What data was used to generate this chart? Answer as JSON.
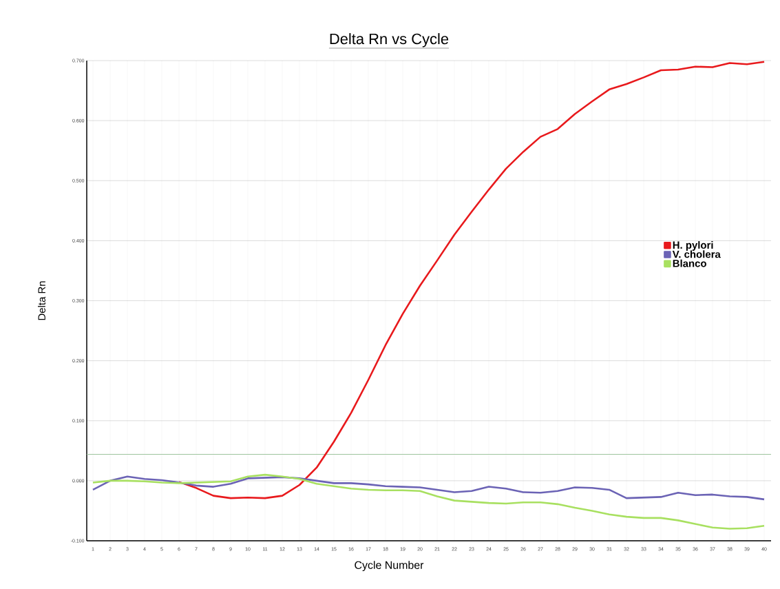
{
  "chart_data": {
    "type": "line",
    "title": "Delta Rn vs Cycle",
    "xlabel": "Cycle Number",
    "ylabel": "Delta Rn",
    "categories": [
      "1",
      "2",
      "3",
      "4",
      "5",
      "6",
      "7",
      "8",
      "9",
      "10",
      "11",
      "12",
      "13",
      "14",
      "15",
      "16",
      "17",
      "18",
      "19",
      "20",
      "21",
      "22",
      "23",
      "24",
      "25",
      "26",
      "27",
      "28",
      "29",
      "30",
      "31",
      "32",
      "33",
      "34",
      "35",
      "36",
      "37",
      "38",
      "39",
      "40"
    ],
    "series": [
      {
        "name": "H. pylori",
        "color": "#e8191c",
        "values": [
          null,
          null,
          null,
          null,
          null,
          -0.002,
          -0.012,
          -0.025,
          -0.029,
          -0.028,
          -0.029,
          -0.025,
          -0.007,
          0.022,
          0.065,
          0.113,
          0.168,
          0.226,
          0.278,
          0.325,
          0.367,
          0.41,
          0.448,
          0.485,
          0.52,
          0.548,
          0.573,
          0.586,
          0.611,
          0.632,
          0.652,
          0.661,
          0.672,
          0.684,
          0.685,
          0.69,
          0.689,
          0.696,
          0.694,
          0.698
        ]
      },
      {
        "name": "V. cholera",
        "color": "#6b63b5",
        "values": [
          -0.015,
          0.0,
          0.007,
          0.003,
          0.001,
          -0.003,
          -0.008,
          -0.01,
          -0.005,
          0.004,
          0.005,
          0.006,
          0.004,
          0.0,
          -0.004,
          -0.004,
          -0.006,
          -0.009,
          -0.01,
          -0.011,
          -0.015,
          -0.019,
          -0.017,
          -0.01,
          -0.013,
          -0.019,
          -0.02,
          -0.017,
          -0.011,
          -0.012,
          -0.015,
          -0.029,
          -0.028,
          -0.027,
          -0.02,
          -0.024,
          -0.023,
          -0.026,
          -0.027,
          -0.031
        ]
      },
      {
        "name": "Blanco",
        "color": "#a8e060",
        "values": [
          -0.003,
          0.0,
          0.0,
          -0.001,
          -0.003,
          -0.004,
          -0.003,
          -0.002,
          -0.001,
          0.007,
          0.01,
          0.007,
          0.003,
          -0.005,
          -0.009,
          -0.013,
          -0.015,
          -0.016,
          -0.016,
          -0.017,
          -0.026,
          -0.033,
          -0.035,
          -0.037,
          -0.038,
          -0.036,
          -0.036,
          -0.039,
          -0.045,
          -0.05,
          -0.056,
          -0.06,
          -0.062,
          -0.062,
          -0.066,
          -0.072,
          -0.078,
          -0.08,
          -0.079,
          -0.075
        ]
      }
    ],
    "ylim": [
      -0.1,
      0.7
    ],
    "yticks": [
      {
        "value": -0.1,
        "label": "-0.100"
      },
      {
        "value": 0.0,
        "label": "0.000"
      },
      {
        "value": 0.1,
        "label": "0.100"
      },
      {
        "value": 0.2,
        "label": "0.200"
      },
      {
        "value": 0.3,
        "label": "0.300"
      },
      {
        "value": 0.4,
        "label": "0.400"
      },
      {
        "value": 0.5,
        "label": "0.500"
      },
      {
        "value": 0.6,
        "label": "0.600"
      },
      {
        "value": 0.7,
        "label": "0.700"
      }
    ],
    "ref_lines": [
      {
        "axis": "y",
        "value": 0.044,
        "color": "#9cc49c"
      }
    ],
    "grid": true,
    "legend": "right",
    "marker": "none",
    "line_style": "solid"
  }
}
